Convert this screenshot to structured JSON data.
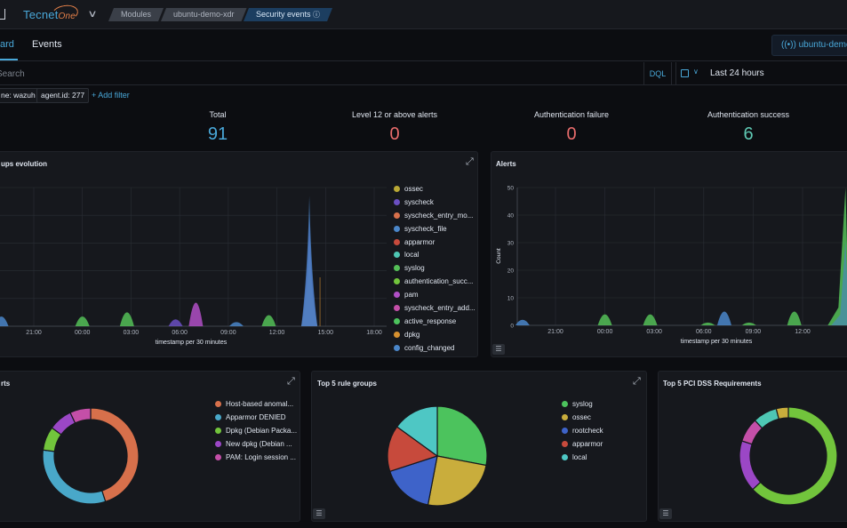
{
  "header": {
    "logo_main": "Tecnet",
    "logo_accent": "One",
    "breadcrumbs": [
      "Modules",
      "ubuntu-demo-xdr",
      "Security events"
    ],
    "active_crumb_info": "ⓘ"
  },
  "tabs": [
    {
      "label": "ard",
      "selected": true
    },
    {
      "label": "Events",
      "selected": false
    }
  ],
  "agent_badge": "ubuntu-demo",
  "search": {
    "placeholder": "Search",
    "query_language": "DQL",
    "date_range": "Last 24 hours"
  },
  "filters": [
    "ne: wazuh",
    "agent.id: 277"
  ],
  "add_filter": "+ Add filter",
  "metrics": [
    {
      "label": "Total",
      "value": "91",
      "color": "#49a8d9"
    },
    {
      "label": "Level 12 or above alerts",
      "value": "0",
      "color": "#e86c6c"
    },
    {
      "label": "Authentication failure",
      "value": "0",
      "color": "#e86c6c"
    },
    {
      "label": "Authentication success",
      "value": "6",
      "color": "#5fc9b4"
    }
  ],
  "panels": {
    "groups_evolution": {
      "title": "ups evolution"
    },
    "alerts": {
      "title": "Alerts"
    },
    "alerts_donut": {
      "title": "rts"
    },
    "top5_rule_groups": {
      "title": "Top 5 rule groups"
    },
    "top5_pci": {
      "title": "Top 5 PCI DSS Requirements"
    }
  },
  "chart_data": [
    {
      "type": "area",
      "title": "ups evolution",
      "xlabel": "timestamp per 30 minutes",
      "ylabel": "",
      "x_ticks": [
        "21:00",
        "00:00",
        "03:00",
        "06:00",
        "09:00",
        "12:00",
        "15:00",
        "18:00"
      ],
      "legend_position": "right",
      "series": [
        {
          "name": "ossec",
          "color": "#b9a835"
        },
        {
          "name": "syscheck",
          "color": "#6a4fc2"
        },
        {
          "name": "syscheck_entry_mo...",
          "color": "#d7704b"
        },
        {
          "name": "syscheck_file",
          "color": "#4a86c9"
        },
        {
          "name": "apparmor",
          "color": "#c74a3c"
        },
        {
          "name": "local",
          "color": "#4ec7b4"
        },
        {
          "name": "syslog",
          "color": "#54bf57"
        },
        {
          "name": "authentication_succ...",
          "color": "#72c43c"
        },
        {
          "name": "pam",
          "color": "#b04fc6"
        },
        {
          "name": "syscheck_entry_add...",
          "color": "#c44fa8"
        },
        {
          "name": "active_response",
          "color": "#4cc35d"
        },
        {
          "name": "dpkg",
          "color": "#d6902f"
        },
        {
          "name": "config_changed",
          "color": "#4a86c9"
        }
      ],
      "peaks": [
        {
          "time": "19:00",
          "value": 0.07,
          "color": "#4a86c9"
        },
        {
          "time": "00:00",
          "value": 0.07,
          "color": "#54bf57"
        },
        {
          "time": "02:45",
          "value": 0.1,
          "color": "#54bf57"
        },
        {
          "time": "05:45",
          "value": 0.05,
          "color": "#6a4fc2"
        },
        {
          "time": "07:00",
          "value": 0.17,
          "color": "#b04fc6"
        },
        {
          "time": "09:30",
          "value": 0.03,
          "color": "#4a86c9"
        },
        {
          "time": "11:30",
          "value": 0.08,
          "color": "#54bf57"
        },
        {
          "time": "14:00",
          "value": 0.95,
          "color": "#4a86c9"
        }
      ]
    },
    {
      "type": "area",
      "title": "Alerts",
      "xlabel": "timestamp per 30 minutes",
      "ylabel": "Count",
      "ylim": [
        0,
        50
      ],
      "y_ticks": [
        0,
        10,
        20,
        30,
        40,
        50
      ],
      "x_ticks": [
        "21:00",
        "00:00",
        "03:00",
        "06:00",
        "09:00",
        "12:00"
      ],
      "peaks": [
        {
          "time": "19:00",
          "value": 2,
          "color": "#4a86c9"
        },
        {
          "time": "00:00",
          "value": 4,
          "color": "#54bf57"
        },
        {
          "time": "02:45",
          "value": 4,
          "color": "#54bf57"
        },
        {
          "time": "06:15",
          "value": 1,
          "color": "#54bf57"
        },
        {
          "time": "07:15",
          "value": 5,
          "color": "#4a86c9"
        },
        {
          "time": "08:45",
          "value": 1,
          "color": "#54bf57"
        },
        {
          "time": "11:30",
          "value": 5,
          "color": "#54bf57"
        },
        {
          "time": "14:30",
          "value": 50,
          "color": "#54bf57"
        }
      ]
    },
    {
      "type": "pie",
      "donut": true,
      "title": "rts",
      "legend_position": "right",
      "series": [
        {
          "name": "Host-based anomal...",
          "value": 45,
          "color": "#d7704b"
        },
        {
          "name": "Apparmor DENIED",
          "value": 32,
          "color": "#49a8c9"
        },
        {
          "name": "Dpkg (Debian Packa...",
          "value": 8,
          "color": "#72c43c"
        },
        {
          "name": "New dpkg (Debian ...",
          "value": 8,
          "color": "#9b47c6"
        },
        {
          "name": "PAM: Login session ...",
          "value": 7,
          "color": "#c44fa8"
        }
      ]
    },
    {
      "type": "pie",
      "donut": false,
      "title": "Top 5 rule groups",
      "legend_position": "right",
      "series": [
        {
          "name": "syslog",
          "value": 28,
          "color": "#4cc35d"
        },
        {
          "name": "ossec",
          "value": 25,
          "color": "#c9ad3c"
        },
        {
          "name": "rootcheck",
          "value": 17,
          "color": "#3e63c9"
        },
        {
          "name": "apparmor",
          "value": 15,
          "color": "#c74a3c"
        },
        {
          "name": "local",
          "value": 15,
          "color": "#4ec7c4"
        }
      ]
    },
    {
      "type": "pie",
      "donut": true,
      "title": "Top 5 PCI DSS Requirements",
      "series": [
        {
          "name": "",
          "value": 63,
          "color": "#72c43c"
        },
        {
          "name": "",
          "value": 17,
          "color": "#9b47c6"
        },
        {
          "name": "",
          "value": 8,
          "color": "#c44fa8"
        },
        {
          "name": "",
          "value": 8,
          "color": "#4ec7b4"
        },
        {
          "name": "",
          "value": 4,
          "color": "#c9ad3c"
        }
      ]
    }
  ]
}
